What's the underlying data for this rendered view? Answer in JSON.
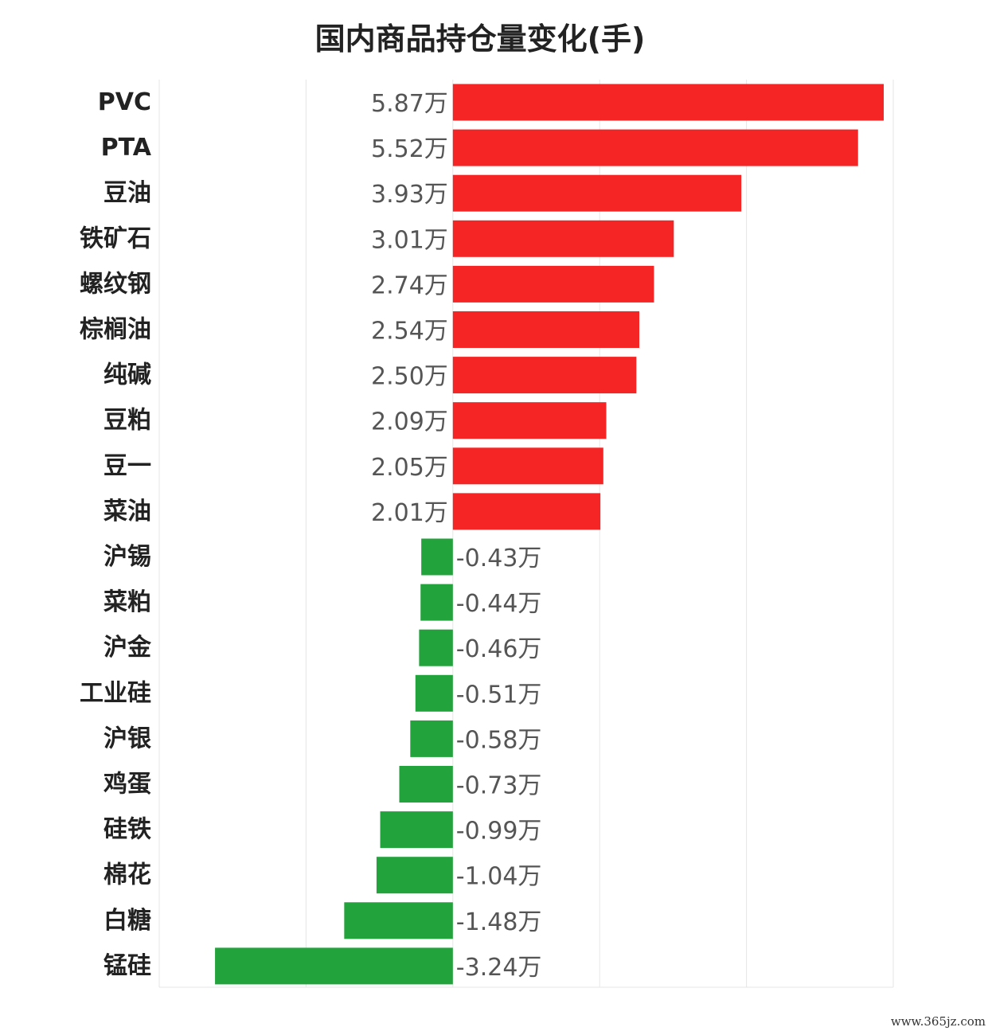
{
  "chart_data": {
    "type": "bar",
    "orientation": "horizontal",
    "title": "国内商品持仓量变化(手)",
    "unit_suffix": "万",
    "categories": [
      "PVC",
      "PTA",
      "豆油",
      "铁矿石",
      "螺纹钢",
      "棕榈油",
      "纯碱",
      "豆粕",
      "豆一",
      "菜油",
      "沪锡",
      "菜粕",
      "沪金",
      "工业硅",
      "沪银",
      "鸡蛋",
      "硅铁",
      "棉花",
      "白糖",
      "锰硅"
    ],
    "values": [
      5.87,
      5.52,
      3.93,
      3.01,
      2.74,
      2.54,
      2.5,
      2.09,
      2.05,
      2.01,
      -0.43,
      -0.44,
      -0.46,
      -0.51,
      -0.58,
      -0.73,
      -0.99,
      -1.04,
      -1.48,
      -3.24
    ],
    "value_labels": [
      "5.87万",
      "5.52万",
      "3.93万",
      "3.01万",
      "2.74万",
      "2.54万",
      "2.50万",
      "2.09万",
      "2.05万",
      "2.01万",
      "-0.43万",
      "-0.44万",
      "-0.46万",
      "-0.51万",
      "-0.58万",
      "-0.73万",
      "-0.99万",
      "-1.04万",
      "-1.48万",
      "-3.24万"
    ],
    "xlim": [
      -4,
      6
    ],
    "grid": true,
    "colors": {
      "positive": "#f52525",
      "negative": "#22a33b",
      "grid": "#e6e6e6"
    }
  },
  "watermark": "www.365jz.com"
}
